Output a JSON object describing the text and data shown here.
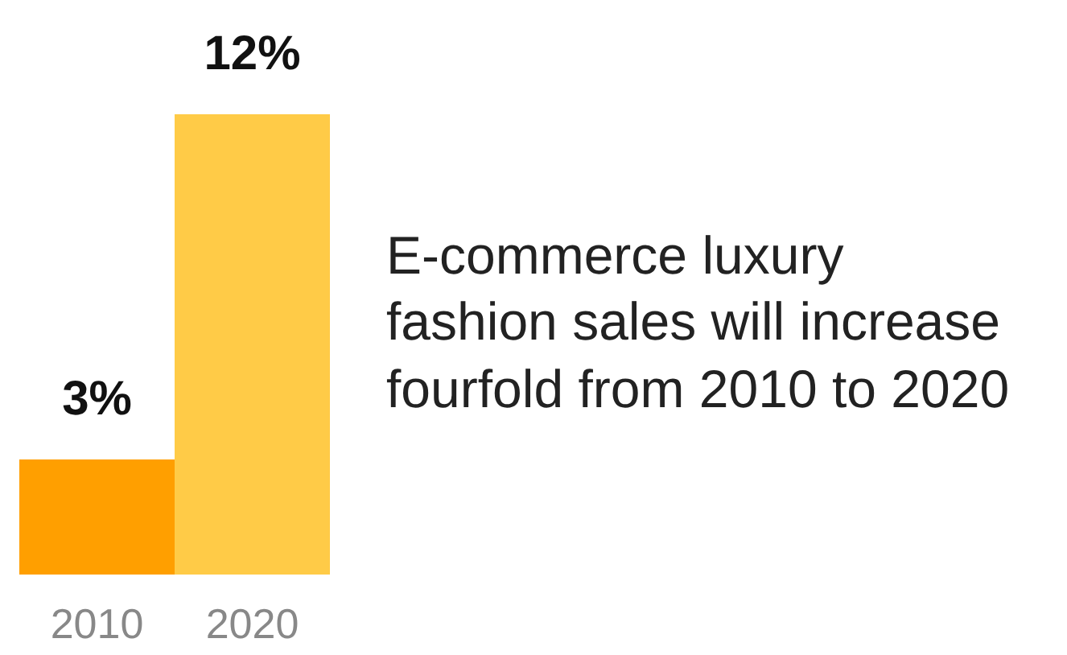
{
  "chart_data": {
    "type": "bar",
    "categories": [
      "2010",
      "2020"
    ],
    "values": [
      3,
      12
    ],
    "colors": [
      "#ff9f00",
      "#ffcb47"
    ],
    "value_labels": [
      "3%",
      "12%"
    ],
    "annotations": [
      "E-commerce luxury fashion sales will increase fourfold from 2010 to 2020"
    ]
  }
}
